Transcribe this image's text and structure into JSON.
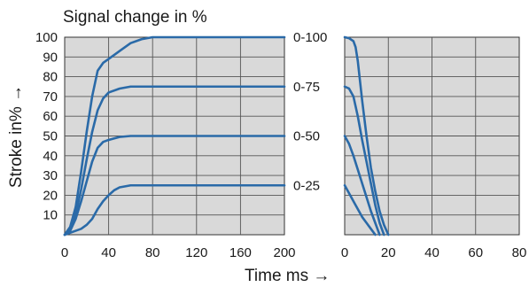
{
  "chart_data": [
    {
      "type": "line",
      "title": "Signal change in %",
      "xlabel": "",
      "ylabel": "Stroke in% →",
      "xlim": [
        0,
        200
      ],
      "ylim": [
        0,
        100
      ],
      "x_ticks": [
        "0",
        "40",
        "80",
        "120",
        "160",
        "200"
      ],
      "y_ticks": [
        "10",
        "20",
        "30",
        "40",
        "50",
        "60",
        "70",
        "80",
        "90",
        "100"
      ],
      "grid": true,
      "line_color": "#2a6aa8",
      "series": [
        {
          "name": "0-100",
          "x": [
            0,
            5,
            10,
            15,
            20,
            25,
            30,
            35,
            40,
            50,
            60,
            70,
            80,
            200
          ],
          "y": [
            0,
            4,
            14,
            32,
            52,
            70,
            83,
            87,
            89,
            93,
            97,
            99,
            100,
            100
          ]
        },
        {
          "name": "0-75",
          "x": [
            0,
            5,
            10,
            15,
            20,
            25,
            30,
            35,
            40,
            50,
            60,
            70,
            80,
            200
          ],
          "y": [
            0,
            3,
            10,
            23,
            38,
            52,
            63,
            69,
            72,
            74,
            75,
            75,
            75,
            75
          ]
        },
        {
          "name": "0-50",
          "x": [
            0,
            5,
            10,
            15,
            20,
            25,
            30,
            35,
            40,
            50,
            60,
            70,
            200
          ],
          "y": [
            0,
            2,
            8,
            17,
            27,
            37,
            44,
            47,
            48,
            49.5,
            50,
            50,
            50
          ]
        },
        {
          "name": "0-25",
          "x": [
            0,
            5,
            10,
            15,
            20,
            25,
            30,
            35,
            40,
            45,
            50,
            55,
            60,
            200
          ],
          "y": [
            0,
            1,
            2,
            3,
            5,
            8,
            13,
            17,
            20,
            22.5,
            24,
            24.5,
            25,
            25
          ]
        }
      ]
    },
    {
      "type": "line",
      "title": "",
      "xlabel": "Time ms →",
      "ylabel": "",
      "xlim": [
        0,
        80
      ],
      "ylim": [
        0,
        100
      ],
      "x_ticks": [
        "0",
        "20",
        "40",
        "60",
        "80"
      ],
      "grid": true,
      "line_color": "#2a6aa8",
      "series": [
        {
          "x": [
            0,
            2,
            4,
            5,
            6,
            8,
            10,
            12,
            14,
            16,
            18,
            20
          ],
          "y": [
            100,
            99.5,
            98,
            95,
            88,
            68,
            50,
            34,
            22,
            12,
            5,
            0
          ]
        },
        {
          "x": [
            0,
            2,
            4,
            6,
            8,
            10,
            12,
            14,
            16,
            18
          ],
          "y": [
            75,
            74,
            70,
            60,
            48,
            37,
            26,
            15,
            6,
            0
          ]
        },
        {
          "x": [
            0,
            2,
            4,
            6,
            8,
            10,
            12,
            14,
            16
          ],
          "y": [
            50,
            46,
            40,
            33,
            26,
            19,
            12,
            6,
            0
          ]
        },
        {
          "x": [
            0,
            2,
            4,
            6,
            8,
            10,
            12,
            14
          ],
          "y": [
            25,
            21,
            17,
            13,
            9,
            6,
            3,
            0
          ]
        }
      ]
    }
  ]
}
